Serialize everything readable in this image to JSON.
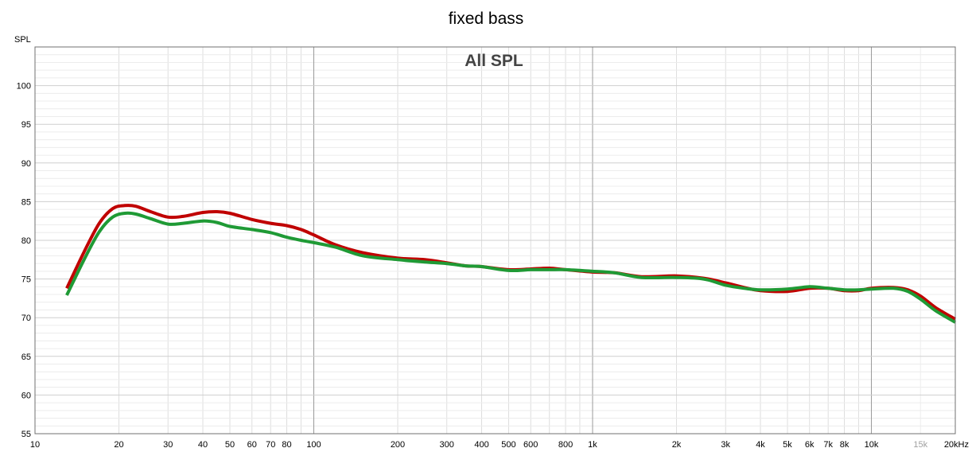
{
  "chart_data": {
    "type": "line",
    "title": "fixed bass",
    "inner_title": "All SPL",
    "ylabel": "SPL",
    "xscale": "log",
    "xlim": [
      10,
      20000
    ],
    "ylim": [
      55,
      105
    ],
    "grid": true,
    "x_ticks": [
      {
        "value": 10,
        "label": "10"
      },
      {
        "value": 20,
        "label": "20"
      },
      {
        "value": 30,
        "label": "30"
      },
      {
        "value": 40,
        "label": "40"
      },
      {
        "value": 50,
        "label": "50"
      },
      {
        "value": 60,
        "label": "60"
      },
      {
        "value": 70,
        "label": "70"
      },
      {
        "value": 80,
        "label": "80"
      },
      {
        "value": 100,
        "label": "100"
      },
      {
        "value": 200,
        "label": "200"
      },
      {
        "value": 300,
        "label": "300"
      },
      {
        "value": 400,
        "label": "400"
      },
      {
        "value": 500,
        "label": "500"
      },
      {
        "value": 600,
        "label": "600"
      },
      {
        "value": 800,
        "label": "800"
      },
      {
        "value": 1000,
        "label": "1k"
      },
      {
        "value": 2000,
        "label": "2k"
      },
      {
        "value": 3000,
        "label": "3k"
      },
      {
        "value": 4000,
        "label": "4k"
      },
      {
        "value": 5000,
        "label": "5k"
      },
      {
        "value": 6000,
        "label": "6k"
      },
      {
        "value": 7000,
        "label": "7k"
      },
      {
        "value": 8000,
        "label": "8k"
      },
      {
        "value": 10000,
        "label": "10k"
      },
      {
        "value": 15000,
        "label": "15k",
        "faded": true
      },
      {
        "value": 20000,
        "label": "20kHz"
      }
    ],
    "y_ticks": [
      {
        "value": 55,
        "label": "55"
      },
      {
        "value": 60,
        "label": "60"
      },
      {
        "value": 65,
        "label": "65"
      },
      {
        "value": 70,
        "label": "70"
      },
      {
        "value": 75,
        "label": "75"
      },
      {
        "value": 80,
        "label": "80"
      },
      {
        "value": 85,
        "label": "85"
      },
      {
        "value": 90,
        "label": "90"
      },
      {
        "value": 95,
        "label": "95"
      },
      {
        "value": 100,
        "label": "100"
      }
    ],
    "series": [
      {
        "color": "#c00000",
        "points": [
          [
            13,
            73.8
          ],
          [
            15,
            78.5
          ],
          [
            17,
            82.2
          ],
          [
            19,
            84.1
          ],
          [
            21,
            84.5
          ],
          [
            23,
            84.4
          ],
          [
            26,
            83.7
          ],
          [
            30,
            83.0
          ],
          [
            34,
            83.1
          ],
          [
            40,
            83.6
          ],
          [
            45,
            83.7
          ],
          [
            50,
            83.5
          ],
          [
            60,
            82.7
          ],
          [
            70,
            82.2
          ],
          [
            80,
            81.9
          ],
          [
            90,
            81.4
          ],
          [
            100,
            80.7
          ],
          [
            120,
            79.4
          ],
          [
            150,
            78.4
          ],
          [
            200,
            77.7
          ],
          [
            250,
            77.5
          ],
          [
            300,
            77.1
          ],
          [
            350,
            76.7
          ],
          [
            400,
            76.6
          ],
          [
            500,
            76.2
          ],
          [
            600,
            76.3
          ],
          [
            700,
            76.4
          ],
          [
            800,
            76.2
          ],
          [
            1000,
            75.9
          ],
          [
            1200,
            75.8
          ],
          [
            1500,
            75.3
          ],
          [
            2000,
            75.4
          ],
          [
            2500,
            75.1
          ],
          [
            3000,
            74.5
          ],
          [
            3500,
            73.9
          ],
          [
            4000,
            73.5
          ],
          [
            5000,
            73.4
          ],
          [
            6000,
            73.8
          ],
          [
            7000,
            73.8
          ],
          [
            8000,
            73.5
          ],
          [
            9000,
            73.5
          ],
          [
            10000,
            73.8
          ],
          [
            12000,
            73.9
          ],
          [
            13500,
            73.6
          ],
          [
            15000,
            72.8
          ],
          [
            17000,
            71.3
          ],
          [
            20000,
            69.8
          ]
        ]
      },
      {
        "color": "#1f9a35",
        "points": [
          [
            13,
            72.9
          ],
          [
            15,
            77.5
          ],
          [
            17,
            81.1
          ],
          [
            19,
            83.0
          ],
          [
            21,
            83.5
          ],
          [
            23,
            83.4
          ],
          [
            26,
            82.8
          ],
          [
            30,
            82.1
          ],
          [
            34,
            82.2
          ],
          [
            40,
            82.5
          ],
          [
            45,
            82.3
          ],
          [
            50,
            81.8
          ],
          [
            60,
            81.4
          ],
          [
            70,
            81.0
          ],
          [
            80,
            80.4
          ],
          [
            90,
            80.0
          ],
          [
            100,
            79.7
          ],
          [
            120,
            79.1
          ],
          [
            150,
            78.0
          ],
          [
            200,
            77.5
          ],
          [
            250,
            77.2
          ],
          [
            300,
            77.0
          ],
          [
            350,
            76.7
          ],
          [
            400,
            76.6
          ],
          [
            500,
            76.1
          ],
          [
            600,
            76.2
          ],
          [
            700,
            76.2
          ],
          [
            800,
            76.2
          ],
          [
            1000,
            76.0
          ],
          [
            1200,
            75.8
          ],
          [
            1500,
            75.2
          ],
          [
            2000,
            75.2
          ],
          [
            2500,
            75.0
          ],
          [
            3000,
            74.2
          ],
          [
            3500,
            73.8
          ],
          [
            4000,
            73.6
          ],
          [
            5000,
            73.7
          ],
          [
            6000,
            74.0
          ],
          [
            7000,
            73.8
          ],
          [
            8000,
            73.6
          ],
          [
            9000,
            73.6
          ],
          [
            10000,
            73.7
          ],
          [
            12000,
            73.8
          ],
          [
            13500,
            73.4
          ],
          [
            15000,
            72.4
          ],
          [
            17000,
            70.9
          ],
          [
            20000,
            69.4
          ]
        ]
      }
    ]
  }
}
